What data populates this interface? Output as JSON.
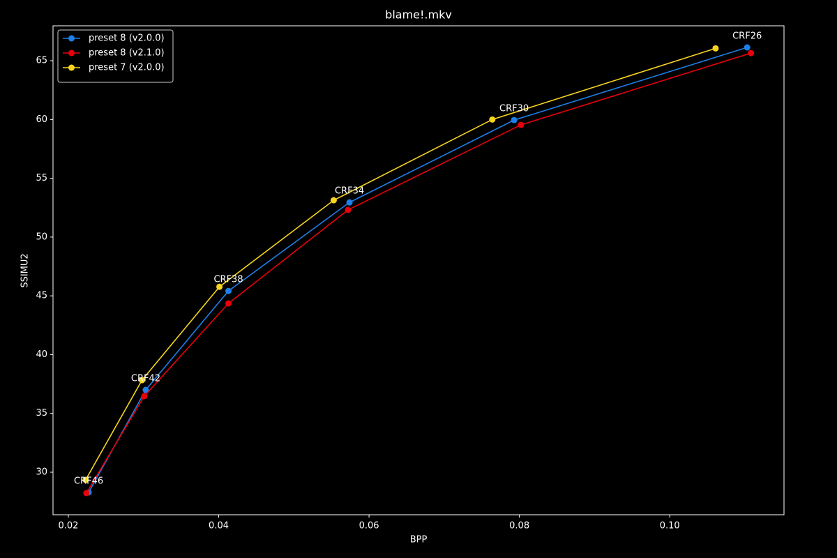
{
  "chart_data": {
    "type": "line",
    "title": "blame!.mkv",
    "x_label": "BPP",
    "y_label": "SSIMU2",
    "series": [
      {
        "name": "preset 8 (v2.0.0)",
        "color": "#1f7fe8",
        "x": [
          0.0227,
          0.0303,
          0.0413,
          0.0574,
          0.0793,
          0.1103
        ],
        "values": [
          28.28,
          37.0,
          45.42,
          52.95,
          59.95,
          66.13
        ]
      },
      {
        "name": "preset 8 (v2.1.0)",
        "color": "#e8000b",
        "x": [
          0.0224,
          0.0301,
          0.0413,
          0.0572,
          0.0802,
          0.1108
        ],
        "values": [
          28.22,
          36.47,
          44.36,
          52.31,
          59.54,
          65.65
        ]
      },
      {
        "name": "preset 7 (v2.0.0)",
        "color": "#f7d51d",
        "x": [
          0.0223,
          0.0298,
          0.0401,
          0.0553,
          0.0764,
          0.1061
        ],
        "values": [
          29.35,
          37.83,
          45.77,
          53.13,
          60.0,
          66.05
        ]
      }
    ],
    "annotations": [
      "CRF46",
      "CRF42",
      "CRF38",
      "CRF34",
      "CRF30",
      "CRF26"
    ],
    "xlim": [
      0.01796,
      0.1152
    ],
    "ylim": [
      26.38,
      67.97
    ],
    "xticks": [
      0.02,
      0.04,
      0.06,
      0.08,
      {
        "value": 0.1,
        "label": "0.10"
      }
    ],
    "yticks": [
      30,
      35,
      40,
      45,
      50,
      55,
      60,
      65
    ],
    "grid": false,
    "legend": "upper left"
  }
}
